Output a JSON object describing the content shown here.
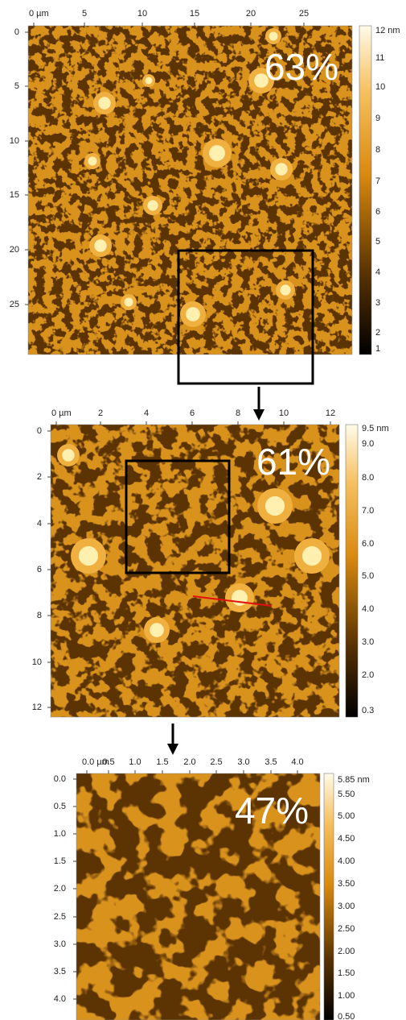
{
  "panels": [
    {
      "x_ticks": [
        "0 µm",
        "5",
        "10",
        "15",
        "20",
        "25"
      ],
      "y_ticks": [
        "0",
        "5",
        "10",
        "15",
        "20",
        "25"
      ],
      "colorbar_labels": [
        "12 nm",
        "11",
        "10",
        "9",
        "8",
        "7",
        "6",
        "5",
        "4",
        "3",
        "2",
        "1"
      ],
      "coverage": "63%"
    },
    {
      "x_ticks": [
        "0 µm",
        "2",
        "4",
        "6",
        "8",
        "10",
        "12"
      ],
      "y_ticks": [
        "0",
        "2",
        "4",
        "6",
        "8",
        "10",
        "12"
      ],
      "colorbar_labels": [
        "9.5 nm",
        "9.0",
        "8.0",
        "7.0",
        "6.0",
        "5.0",
        "4.0",
        "3.0",
        "2.0",
        "0.3"
      ],
      "coverage": "61%"
    },
    {
      "x_ticks": [
        "0.0 µm",
        "0.5",
        "1.0",
        "1.5",
        "2.0",
        "2.5",
        "3.0",
        "3.5",
        "4.0"
      ],
      "y_ticks": [
        "0.0",
        "0.5",
        "1.0",
        "1.5",
        "2.0",
        "2.5",
        "3.0",
        "3.5",
        "4.0"
      ],
      "colorbar_labels": [
        "5.85 nm",
        "5.50",
        "5.00",
        "4.50",
        "4.00",
        "3.50",
        "3.00",
        "2.50",
        "2.00",
        "1.50",
        "1.00",
        "0.50"
      ],
      "coverage": "47%"
    }
  ]
}
